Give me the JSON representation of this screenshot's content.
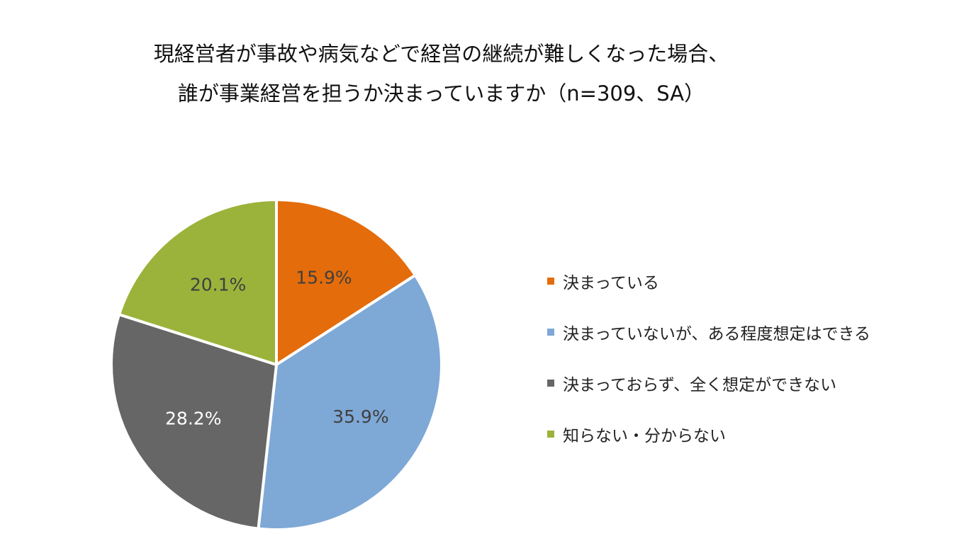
{
  "chart_data": {
    "type": "pie",
    "title_lines": [
      "現経営者が事故や病気などで経営の継続が難しくなった場合、",
      "誰が事業経営を担うか決まっていますか（n=309、SA）"
    ],
    "series": [
      {
        "name": "決まっている",
        "value": 15.9,
        "label": "15.9%",
        "color": "#E46C0A",
        "label_color": "#404040"
      },
      {
        "name": "決まっていないが、ある程度想定はできる",
        "value": 35.9,
        "label": "35.9%",
        "color": "#7EA8D6",
        "label_color": "#404040"
      },
      {
        "name": "決まっておらず、全く想定ができない",
        "value": 28.2,
        "label": "28.2%",
        "color": "#666666",
        "label_color": "#FFFFFF"
      },
      {
        "name": "知らない・分からない",
        "value": 20.1,
        "label": "20.1%",
        "color": "#9BB33A",
        "label_color": "#404040"
      }
    ],
    "start_angle": "12 o'clock",
    "direction": "clockwise",
    "legend_position": "right"
  }
}
